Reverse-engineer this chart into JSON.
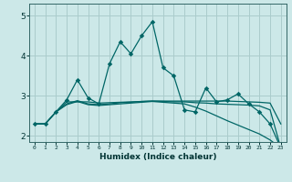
{
  "xlabel": "Humidex (Indice chaleur)",
  "bg_color": "#cce8e8",
  "grid_color": "#aacccc",
  "line_color": "#006666",
  "x": [
    0,
    1,
    2,
    3,
    4,
    5,
    6,
    7,
    8,
    9,
    10,
    11,
    12,
    13,
    14,
    15,
    16,
    17,
    18,
    19,
    20,
    21,
    22,
    23
  ],
  "line1": [
    2.3,
    2.3,
    2.6,
    2.9,
    3.4,
    2.95,
    2.8,
    3.8,
    4.35,
    4.05,
    4.5,
    4.85,
    3.7,
    3.5,
    2.65,
    2.6,
    3.2,
    2.85,
    2.9,
    3.05,
    2.8,
    2.6,
    2.3,
    1.7
  ],
  "line2": [
    2.3,
    2.3,
    2.6,
    2.85,
    2.85,
    2.85,
    2.82,
    2.83,
    2.84,
    2.85,
    2.86,
    2.87,
    2.87,
    2.87,
    2.87,
    2.87,
    2.87,
    2.87,
    2.87,
    2.86,
    2.85,
    2.84,
    2.82,
    2.3
  ],
  "line3": [
    2.3,
    2.3,
    2.6,
    2.8,
    2.88,
    2.8,
    2.78,
    2.8,
    2.83,
    2.84,
    2.86,
    2.87,
    2.86,
    2.85,
    2.85,
    2.83,
    2.82,
    2.8,
    2.79,
    2.78,
    2.77,
    2.75,
    2.65,
    1.7
  ],
  "line4": [
    2.3,
    2.3,
    2.6,
    2.78,
    2.86,
    2.78,
    2.76,
    2.78,
    2.8,
    2.82,
    2.84,
    2.86,
    2.84,
    2.82,
    2.8,
    2.72,
    2.62,
    2.5,
    2.38,
    2.27,
    2.16,
    2.05,
    1.9,
    1.7
  ],
  "yticks": [
    2,
    3,
    4,
    5
  ],
  "ylim": [
    1.85,
    5.3
  ],
  "xlim": [
    -0.5,
    23.5
  ]
}
